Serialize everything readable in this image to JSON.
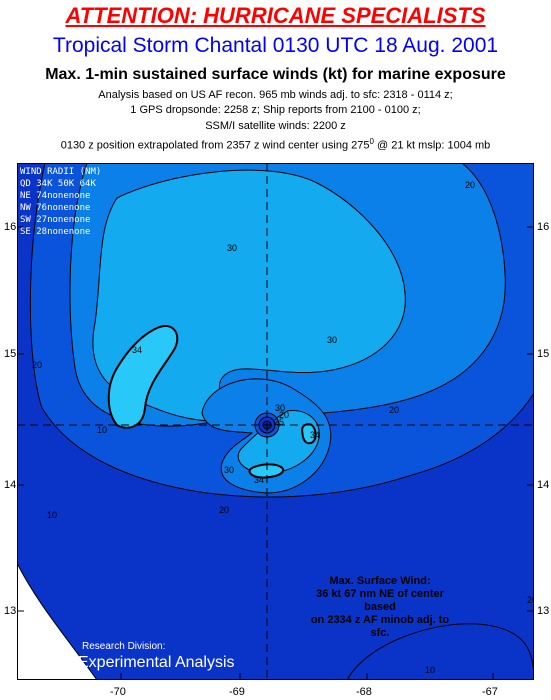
{
  "header": {
    "alert": "ATTENTION: HURRICANE SPECIALISTS",
    "storm": "Tropical Storm Chantal 0130 UTC 18 Aug. 2001",
    "subtitle": "Max. 1-min sustained surface winds (kt) for marine exposure",
    "line1": "Analysis based on US AF recon. 965 mb winds adj. to sfc: 2318 - 0114 z;",
    "line2": "1 GPS dropsonde: 2258 z; Ship reports from  2100 - 0100 z;",
    "line3": "SSM/I satellite winds: 2200 z",
    "line4a": "0130 z position extrapolated from 2357 z wind center using 275",
    "line4sup": "0",
    "line4b": " @ 21 kt  mslp: 1004 mb"
  },
  "legend": {
    "title": "WIND RADII (NM)",
    "header": "QD  34K  50K  64K",
    "rows": [
      "NE   74nonenone",
      "NW   76nonenone",
      "SW   27nonenone",
      "SE   28nonenone"
    ]
  },
  "max_wind": {
    "l1": "Max. Surface Wind:",
    "l2": "36 kt 67 nm NE of center based",
    "l3": "on 2334 z AF minob adj. to sfc."
  },
  "credit": {
    "l1": "Research Division:",
    "l2": "Experimental Analysis"
  },
  "axes": {
    "x_ticks": [
      "-70",
      "-69",
      "-68",
      "-67"
    ],
    "y_ticks": [
      "16",
      "15",
      "14",
      "13"
    ]
  },
  "contour_labels": [
    "30",
    "30",
    "34",
    "20",
    "10",
    "20",
    "20",
    "20",
    "30",
    "34",
    "34",
    "20",
    "10",
    "20",
    "25",
    "30",
    "10"
  ],
  "colors": {
    "alert": "#ff0000",
    "title": "#0000ff",
    "fill_lt10": "#0a34c8",
    "fill_10_20": "#0a54dc",
    "fill_20_30": "#0a80e8",
    "fill_30_34": "#14aaf0",
    "fill_gt34": "#28c8f8"
  }
}
